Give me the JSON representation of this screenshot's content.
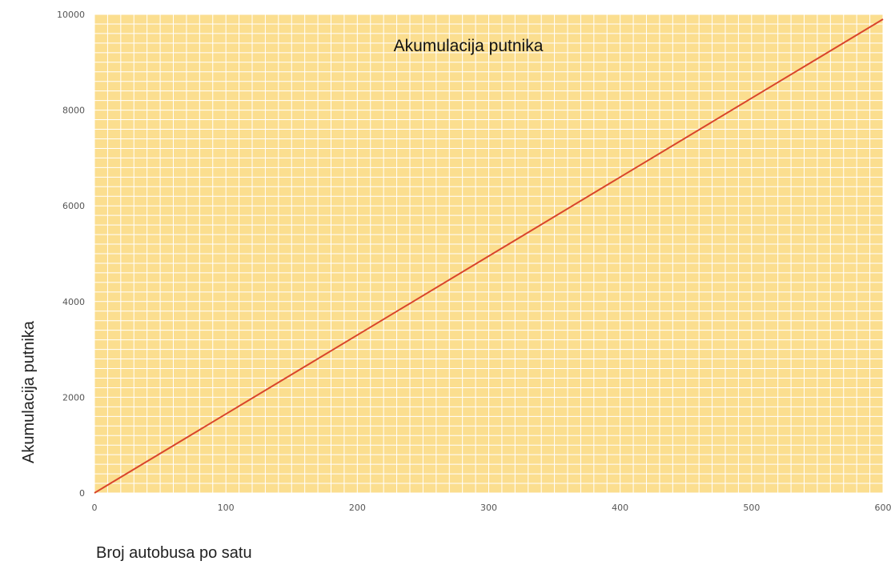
{
  "chart_data": {
    "type": "line",
    "title": "Akumulacija putnika",
    "xlabel": "Broj autobusa po satu",
    "ylabel": "Akumulacija putnika",
    "xlim": [
      0,
      600
    ],
    "ylim": [
      0,
      10000
    ],
    "x_ticks": [
      "0",
      "100",
      "200",
      "300",
      "400",
      "500",
      "600"
    ],
    "y_ticks": [
      "0",
      "2000",
      "4000",
      "6000",
      "8000",
      "10000"
    ],
    "grid": true,
    "legend": "none",
    "series": [
      {
        "x": [
          0,
          100,
          200,
          300,
          400,
          500,
          600
        ],
        "y": [
          0,
          1650,
          3300,
          4950,
          6600,
          8250,
          9900
        ]
      }
    ],
    "colors": {
      "plot_background": "#fbde8f",
      "grid": "#ffffff",
      "line": "#d9452b"
    }
  }
}
